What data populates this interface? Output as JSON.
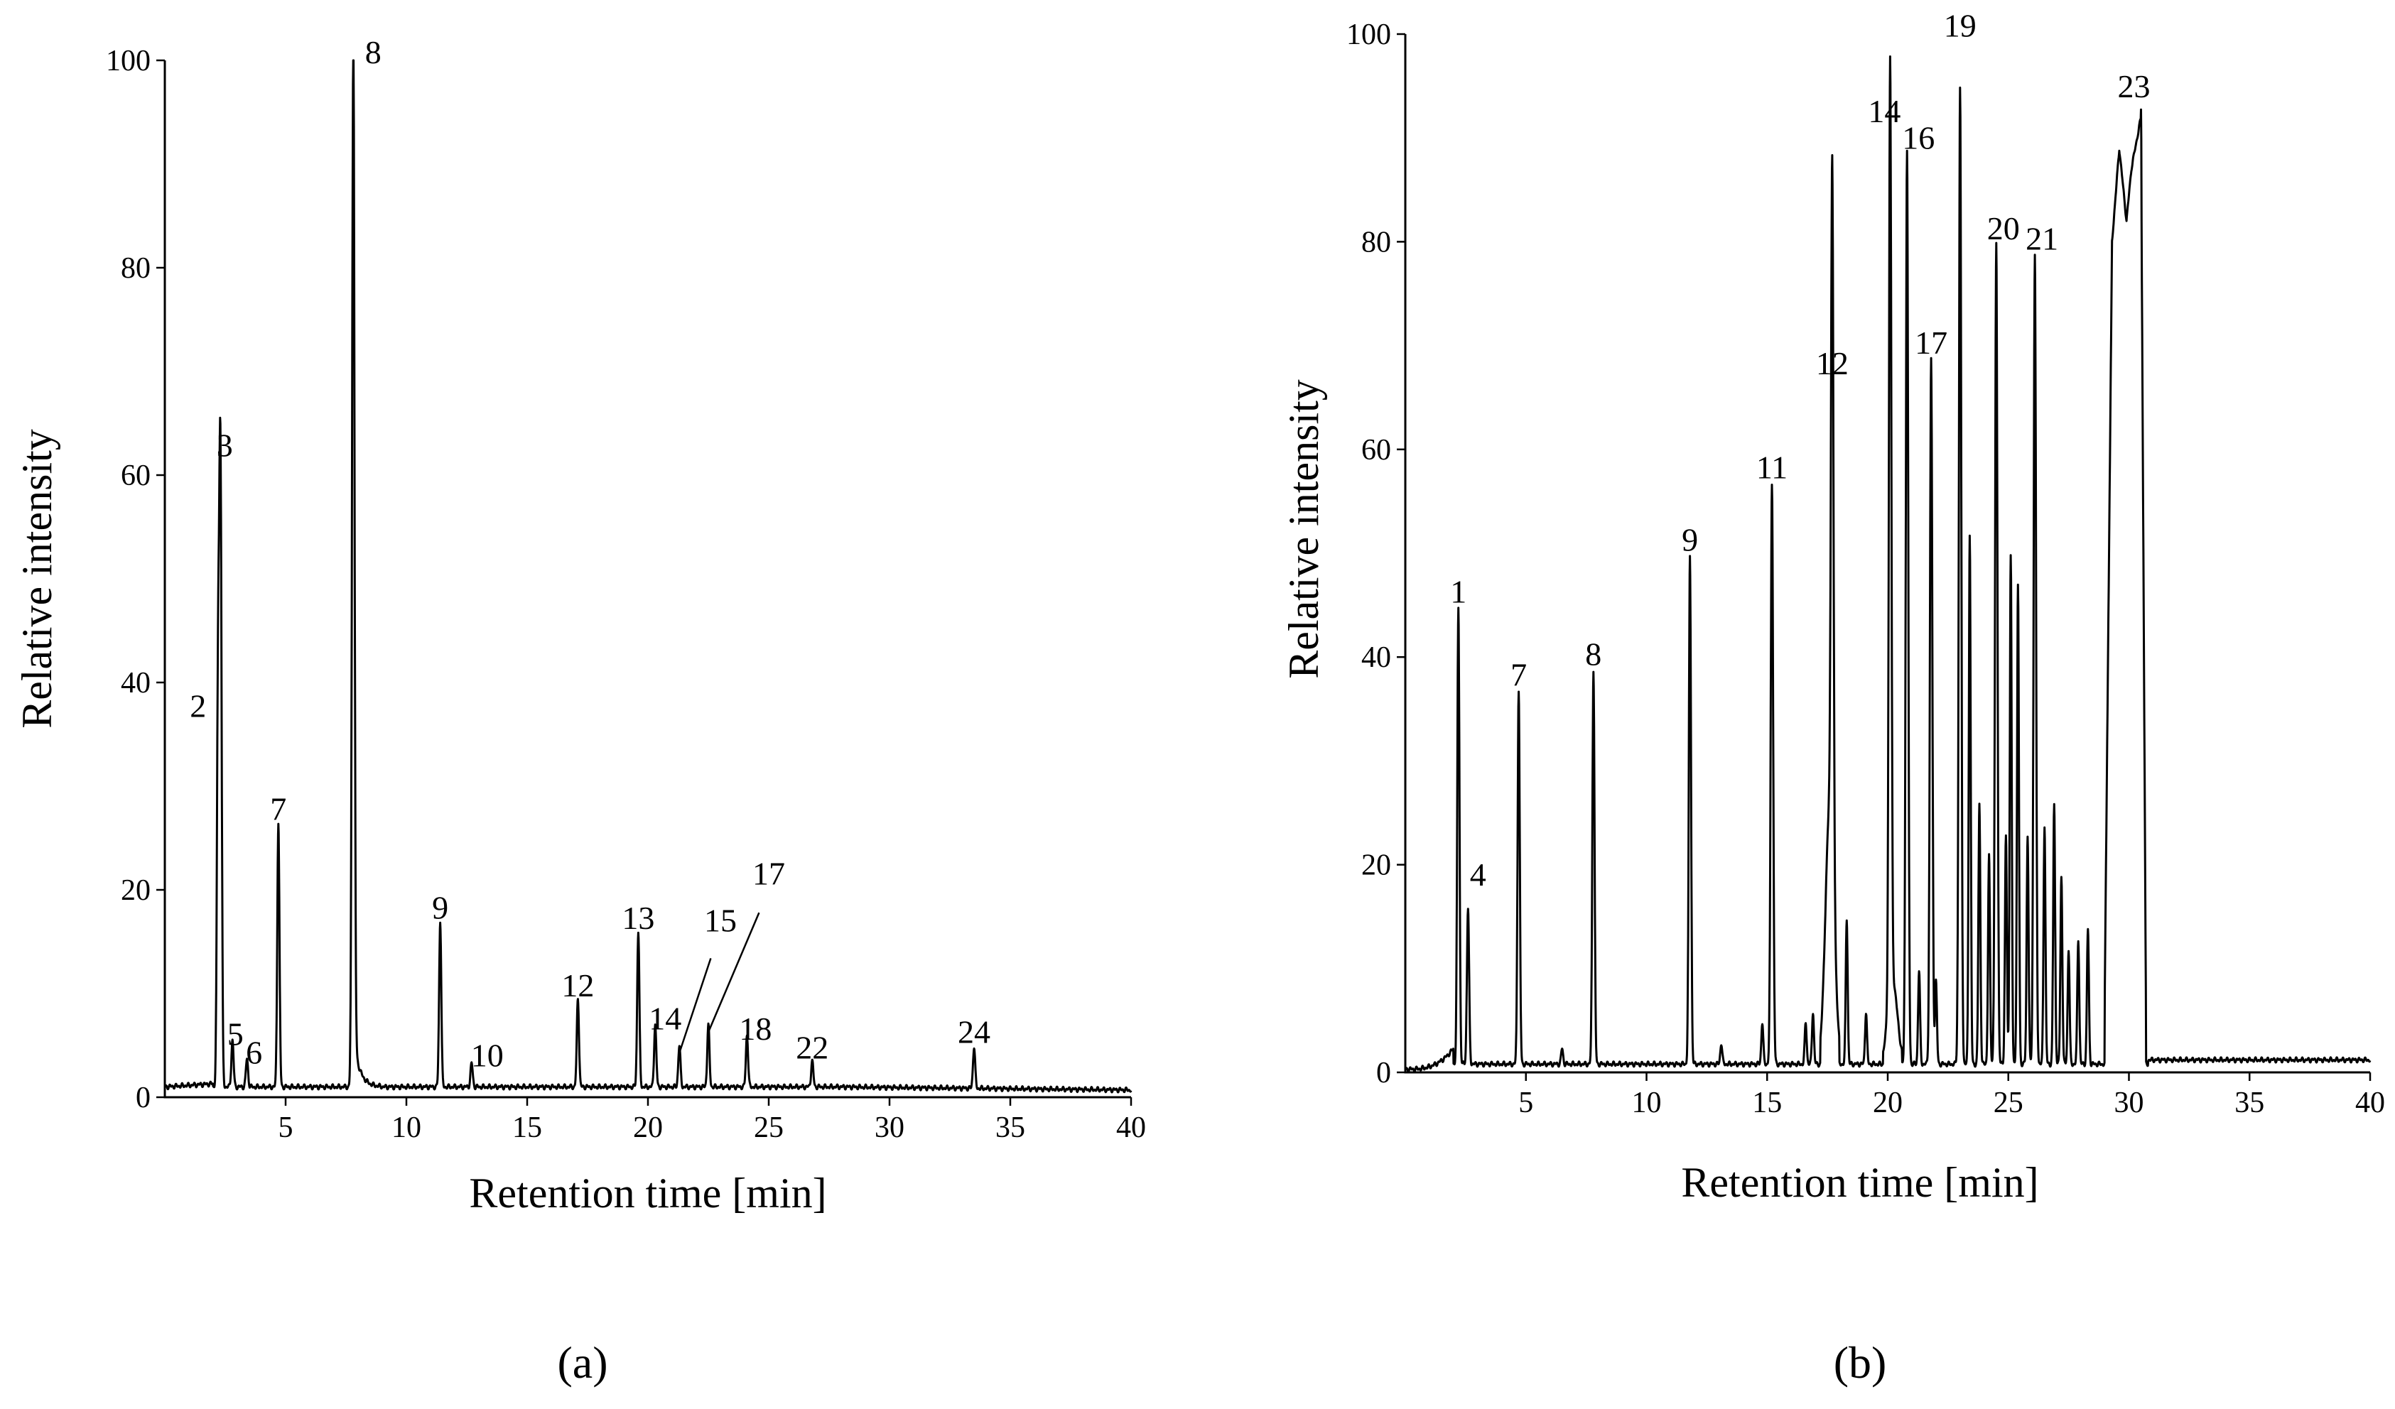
{
  "chart_data": [
    {
      "type": "line",
      "panel_label": "(a)",
      "xlabel": "Retention time [min]",
      "ylabel": "Relative intensity",
      "xlim": [
        0,
        40
      ],
      "ylim": [
        0,
        100
      ],
      "xticks": [
        5,
        10,
        15,
        20,
        25,
        30,
        35,
        40
      ],
      "yticks": [
        0,
        20,
        40,
        60,
        80,
        100
      ],
      "grid": false,
      "peaks": [
        {
          "label": "2",
          "x": 2.2,
          "y": 36
        },
        {
          "label": "3",
          "x": 2.3,
          "y": 61
        },
        {
          "label": "5",
          "x": 2.8,
          "y": 4.5
        },
        {
          "label": "6",
          "x": 3.4,
          "y": 2.7
        },
        {
          "label": "7",
          "x": 4.7,
          "y": 25.5
        },
        {
          "label": "8",
          "x": 7.8,
          "y": 100
        },
        {
          "label": "9",
          "x": 11.4,
          "y": 16
        },
        {
          "label": "10",
          "x": 12.7,
          "y": 2.3
        },
        {
          "label": "12",
          "x": 17.1,
          "y": 8.5
        },
        {
          "label": "13",
          "x": 19.6,
          "y": 15
        },
        {
          "label": "14",
          "x": 20.3,
          "y": 6
        },
        {
          "label": "15",
          "x": 21.3,
          "y": 4
        },
        {
          "label": "17",
          "x": 22.5,
          "y": 6
        },
        {
          "label": "18",
          "x": 24.1,
          "y": 5
        },
        {
          "label": "22",
          "x": 26.8,
          "y": 2.5
        },
        {
          "label": "24",
          "x": 33.5,
          "y": 4
        }
      ]
    },
    {
      "type": "line",
      "panel_label": "(b)",
      "xlabel": "Retention time [min]",
      "ylabel": "Relative intensity",
      "xlim": [
        0,
        40
      ],
      "ylim": [
        0,
        100
      ],
      "xticks": [
        5,
        10,
        15,
        20,
        25,
        30,
        35,
        40
      ],
      "yticks": [
        0,
        20,
        40,
        60,
        80,
        100
      ],
      "grid": false,
      "peaks": [
        {
          "label": "1",
          "x": 2.2,
          "y": 44
        },
        {
          "label": "4",
          "x": 2.6,
          "y": 15
        },
        {
          "label": "7",
          "x": 4.7,
          "y": 36
        },
        {
          "label": "8",
          "x": 7.8,
          "y": 38
        },
        {
          "label": "9",
          "x": 11.8,
          "y": 49
        },
        {
          "label": "11",
          "x": 15.2,
          "y": 56
        },
        {
          "label": "12",
          "x": 17.7,
          "y": 66
        },
        {
          "label": "14",
          "x": 20.1,
          "y": 90
        },
        {
          "label": "16",
          "x": 20.8,
          "y": 88
        },
        {
          "label": "17",
          "x": 21.8,
          "y": 68
        },
        {
          "label": "19",
          "x": 23.0,
          "y": 94
        },
        {
          "label": "20",
          "x": 24.5,
          "y": 79
        },
        {
          "label": "21",
          "x": 26.1,
          "y": 78
        },
        {
          "label": "23",
          "x": 30.5,
          "y": 92
        }
      ],
      "minor_peaks": [
        {
          "x": 6.5,
          "y": 1.5
        },
        {
          "x": 13.1,
          "y": 2
        },
        {
          "x": 14.8,
          "y": 4
        },
        {
          "x": 16.6,
          "y": 4
        },
        {
          "x": 16.9,
          "y": 5
        },
        {
          "x": 18.3,
          "y": 14
        },
        {
          "x": 19.1,
          "y": 5
        },
        {
          "x": 21.3,
          "y": 9
        },
        {
          "x": 22.0,
          "y": 8
        },
        {
          "x": 23.4,
          "y": 51
        },
        {
          "x": 23.8,
          "y": 25
        },
        {
          "x": 24.2,
          "y": 20
        },
        {
          "x": 24.9,
          "y": 22
        },
        {
          "x": 25.1,
          "y": 49
        },
        {
          "x": 25.4,
          "y": 46
        },
        {
          "x": 25.8,
          "y": 22
        },
        {
          "x": 26.5,
          "y": 23
        },
        {
          "x": 26.9,
          "y": 25
        },
        {
          "x": 27.2,
          "y": 18
        },
        {
          "x": 27.5,
          "y": 11
        },
        {
          "x": 27.9,
          "y": 12
        },
        {
          "x": 28.3,
          "y": 13
        }
      ],
      "broad_peaks": [
        {
          "x_start": 29.0,
          "x_end": 30.8,
          "values": [
            {
              "x": 29.0,
              "y": 8
            },
            {
              "x": 29.3,
              "y": 80
            },
            {
              "x": 29.6,
              "y": 89
            },
            {
              "x": 29.9,
              "y": 82
            },
            {
              "x": 30.1,
              "y": 87
            },
            {
              "x": 30.5,
              "y": 92
            },
            {
              "x": 30.7,
              "y": 8
            }
          ]
        }
      ]
    }
  ]
}
